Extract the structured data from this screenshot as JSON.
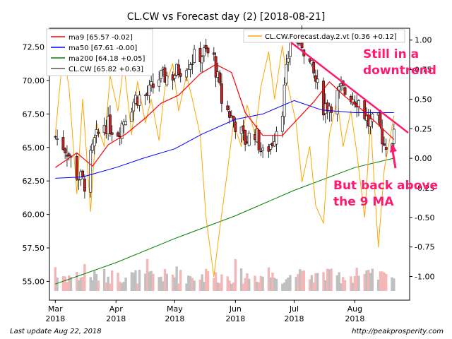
{
  "chart_data": {
    "type": "candlestick",
    "title": "CL.CW vs Forecast day (2)  [2018-08-21]",
    "colors": {
      "ma9": "#ff0000",
      "ma50": "#0000ff",
      "ma200": "#008000",
      "price": "#000000",
      "forecast": "#ffa500",
      "annotation": "#ff1a70",
      "vol_up": "#c0c0c0",
      "vol_down": "#f4b6b6"
    },
    "left_axis": {
      "range": [
        53.6,
        73.9
      ],
      "ticks": [
        "72.50",
        "70.00",
        "67.50",
        "65.00",
        "62.50",
        "60.00",
        "57.50",
        "55.00"
      ],
      "tick_values": [
        72.5,
        70,
        67.5,
        65,
        62.5,
        60,
        57.5,
        55
      ]
    },
    "right_axis": {
      "range": [
        -1.2,
        1.1
      ],
      "ticks": [
        "1.00",
        "0.75",
        "0.50",
        "0.25",
        "0.00",
        "-0.25",
        "-0.50",
        "-0.75",
        "-1.00"
      ],
      "tick_values": [
        1,
        0.75,
        0.5,
        0.25,
        0,
        -0.25,
        -0.5,
        -0.75,
        -1
      ]
    },
    "x_axis": {
      "labels": [
        {
          "month": "Mar",
          "year": "2018"
        },
        {
          "month": "Apr",
          "year": "2018"
        },
        {
          "month": "May",
          "year": "2018"
        },
        {
          "month": "Jun",
          "year": "2018"
        },
        {
          "month": "Jul",
          "year": "2018"
        },
        {
          "month": "Aug",
          "year": "2018"
        }
      ],
      "label_dates": [
        "2018-03-01",
        "2018-04-01",
        "2018-05-01",
        "2018-06-01",
        "2018-07-01",
        "2018-08-01"
      ],
      "start_date": "2018-02-26",
      "end_date": "2018-08-29"
    },
    "legend_left": [
      {
        "name": "ma9 [65.57 -0.02]",
        "color": "#ff0000"
      },
      {
        "name": "ma50 [67.61 -0.00]",
        "color": "#0000ff"
      },
      {
        "name": "ma200 [64.18 +0.05]",
        "color": "#008000"
      },
      {
        "name": "CL.CW [65.82 +0.63]",
        "color": "#000000"
      }
    ],
    "legend_right": {
      "name": "CL.CW.Forecast.day.2.vt [0.36 +0.12]",
      "color": "#ffa500"
    },
    "price": [
      {
        "date": "2018-03-01",
        "value": 65.8
      },
      {
        "date": "2018-03-07",
        "value": 64.8
      },
      {
        "date": "2018-03-12",
        "value": 63.0
      },
      {
        "date": "2018-03-16",
        "value": 62.3
      },
      {
        "date": "2018-03-21",
        "value": 65.4
      },
      {
        "date": "2018-03-26",
        "value": 66.8
      },
      {
        "date": "2018-04-02",
        "value": 66.2
      },
      {
        "date": "2018-04-06",
        "value": 67.4
      },
      {
        "date": "2018-04-11",
        "value": 68.7
      },
      {
        "date": "2018-04-17",
        "value": 68.9
      },
      {
        "date": "2018-04-23",
        "value": 70.2
      },
      {
        "date": "2018-04-30",
        "value": 70.4
      },
      {
        "date": "2018-05-07",
        "value": 71.3
      },
      {
        "date": "2018-05-11",
        "value": 71.7
      },
      {
        "date": "2018-05-17",
        "value": 72.1
      },
      {
        "date": "2018-05-21",
        "value": 71.6
      },
      {
        "date": "2018-05-25",
        "value": 68.5
      },
      {
        "date": "2018-05-31",
        "value": 67.0
      },
      {
        "date": "2018-06-06",
        "value": 65.5
      },
      {
        "date": "2018-06-11",
        "value": 66.2
      },
      {
        "date": "2018-06-15",
        "value": 64.4
      },
      {
        "date": "2018-06-20",
        "value": 65.5
      },
      {
        "date": "2018-06-25",
        "value": 68.0
      },
      {
        "date": "2018-06-29",
        "value": 73.1
      },
      {
        "date": "2018-07-05",
        "value": 72.8
      },
      {
        "date": "2018-07-11",
        "value": 70.4
      },
      {
        "date": "2018-07-16",
        "value": 68.1
      },
      {
        "date": "2018-07-20",
        "value": 68.3
      },
      {
        "date": "2018-07-25",
        "value": 69.3
      },
      {
        "date": "2018-07-31",
        "value": 68.8
      },
      {
        "date": "2018-08-03",
        "value": 68.5
      },
      {
        "date": "2018-08-08",
        "value": 66.8
      },
      {
        "date": "2018-08-13",
        "value": 66.9
      },
      {
        "date": "2018-08-16",
        "value": 65.2
      },
      {
        "date": "2018-08-21",
        "value": 65.8
      }
    ],
    "ma9": [
      {
        "date": "2018-03-01",
        "value": 63.5
      },
      {
        "date": "2018-03-12",
        "value": 64.6
      },
      {
        "date": "2018-03-20",
        "value": 63.6
      },
      {
        "date": "2018-03-28",
        "value": 65.2
      },
      {
        "date": "2018-04-06",
        "value": 66.0
      },
      {
        "date": "2018-04-16",
        "value": 67.2
      },
      {
        "date": "2018-04-24",
        "value": 68.3
      },
      {
        "date": "2018-05-03",
        "value": 68.9
      },
      {
        "date": "2018-05-14",
        "value": 70.5
      },
      {
        "date": "2018-05-22",
        "value": 71.2
      },
      {
        "date": "2018-05-30",
        "value": 70.6
      },
      {
        "date": "2018-06-06",
        "value": 67.6
      },
      {
        "date": "2018-06-15",
        "value": 65.9
      },
      {
        "date": "2018-06-25",
        "value": 65.9
      },
      {
        "date": "2018-07-02",
        "value": 67.0
      },
      {
        "date": "2018-07-11",
        "value": 68.4
      },
      {
        "date": "2018-07-19",
        "value": 69.9
      },
      {
        "date": "2018-07-27",
        "value": 68.8
      },
      {
        "date": "2018-08-04",
        "value": 67.9
      },
      {
        "date": "2018-08-13",
        "value": 66.7
      },
      {
        "date": "2018-08-21",
        "value": 65.6
      }
    ],
    "ma50": [
      {
        "date": "2018-03-01",
        "value": 62.7
      },
      {
        "date": "2018-03-15",
        "value": 62.8
      },
      {
        "date": "2018-04-01",
        "value": 63.5
      },
      {
        "date": "2018-04-15",
        "value": 64.2
      },
      {
        "date": "2018-05-01",
        "value": 64.9
      },
      {
        "date": "2018-05-15",
        "value": 66.0
      },
      {
        "date": "2018-06-01",
        "value": 67.1
      },
      {
        "date": "2018-06-15",
        "value": 67.5
      },
      {
        "date": "2018-07-01",
        "value": 68.5
      },
      {
        "date": "2018-07-15",
        "value": 67.8
      },
      {
        "date": "2018-08-01",
        "value": 67.6
      },
      {
        "date": "2018-08-21",
        "value": 67.6
      }
    ],
    "ma200": [
      {
        "date": "2018-03-01",
        "value": 54.8
      },
      {
        "date": "2018-04-01",
        "value": 56.4
      },
      {
        "date": "2018-05-01",
        "value": 58.2
      },
      {
        "date": "2018-06-01",
        "value": 59.9
      },
      {
        "date": "2018-07-01",
        "value": 61.8
      },
      {
        "date": "2018-08-01",
        "value": 63.5
      },
      {
        "date": "2018-08-21",
        "value": 64.2
      }
    ],
    "forecast": [
      {
        "date": "2018-03-01",
        "value": 0.2
      },
      {
        "date": "2018-03-05",
        "value": 0.9
      },
      {
        "date": "2018-03-08",
        "value": 0.6
      },
      {
        "date": "2018-03-12",
        "value": -0.3
      },
      {
        "date": "2018-03-15",
        "value": 0.5
      },
      {
        "date": "2018-03-19",
        "value": -0.45
      },
      {
        "date": "2018-03-22",
        "value": 0.3
      },
      {
        "date": "2018-03-26",
        "value": 0.1
      },
      {
        "date": "2018-03-29",
        "value": 0.7
      },
      {
        "date": "2018-04-02",
        "value": 0.4
      },
      {
        "date": "2018-04-05",
        "value": 0.8
      },
      {
        "date": "2018-04-09",
        "value": 0.2
      },
      {
        "date": "2018-04-12",
        "value": 0.65
      },
      {
        "date": "2018-04-16",
        "value": 0.3
      },
      {
        "date": "2018-04-19",
        "value": 0.5
      },
      {
        "date": "2018-04-23",
        "value": 0.15
      },
      {
        "date": "2018-04-26",
        "value": 0.6
      },
      {
        "date": "2018-04-30",
        "value": 0.8
      },
      {
        "date": "2018-05-03",
        "value": 0.4
      },
      {
        "date": "2018-05-07",
        "value": 0.7
      },
      {
        "date": "2018-05-10",
        "value": 0.5
      },
      {
        "date": "2018-05-14",
        "value": 0.2
      },
      {
        "date": "2018-05-17",
        "value": -0.5
      },
      {
        "date": "2018-05-21",
        "value": -1.0
      },
      {
        "date": "2018-05-24",
        "value": -0.6
      },
      {
        "date": "2018-05-28",
        "value": -0.1
      },
      {
        "date": "2018-05-31",
        "value": 0.3
      },
      {
        "date": "2018-06-04",
        "value": 0.1
      },
      {
        "date": "2018-06-07",
        "value": 0.45
      },
      {
        "date": "2018-06-11",
        "value": 0.2
      },
      {
        "date": "2018-06-14",
        "value": 0.6
      },
      {
        "date": "2018-06-18",
        "value": 0.9
      },
      {
        "date": "2018-06-21",
        "value": 0.5
      },
      {
        "date": "2018-06-25",
        "value": 0.95
      },
      {
        "date": "2018-06-28",
        "value": 0.6
      },
      {
        "date": "2018-07-02",
        "value": 0.3
      },
      {
        "date": "2018-07-05",
        "value": -0.2
      },
      {
        "date": "2018-07-09",
        "value": 0.1
      },
      {
        "date": "2018-07-12",
        "value": -0.4
      },
      {
        "date": "2018-07-16",
        "value": -0.55
      },
      {
        "date": "2018-07-19",
        "value": 0.2
      },
      {
        "date": "2018-07-23",
        "value": 0.5
      },
      {
        "date": "2018-07-26",
        "value": 0.1
      },
      {
        "date": "2018-07-30",
        "value": 0.4
      },
      {
        "date": "2018-08-02",
        "value": 0.05
      },
      {
        "date": "2018-08-06",
        "value": -0.5
      },
      {
        "date": "2018-08-09",
        "value": 0.3
      },
      {
        "date": "2018-08-13",
        "value": -0.75
      },
      {
        "date": "2018-08-16",
        "value": -0.1
      },
      {
        "date": "2018-08-21",
        "value": 0.36
      }
    ]
  },
  "annotations": {
    "trend_text_1": "Still in a",
    "trend_text_2": "downtrend",
    "ma_text_1": "But back above",
    "ma_text_2": "the 9 MA"
  },
  "footer": {
    "left": "Last update Aug 22, 2018",
    "right": "http://peakprosperity.com"
  }
}
